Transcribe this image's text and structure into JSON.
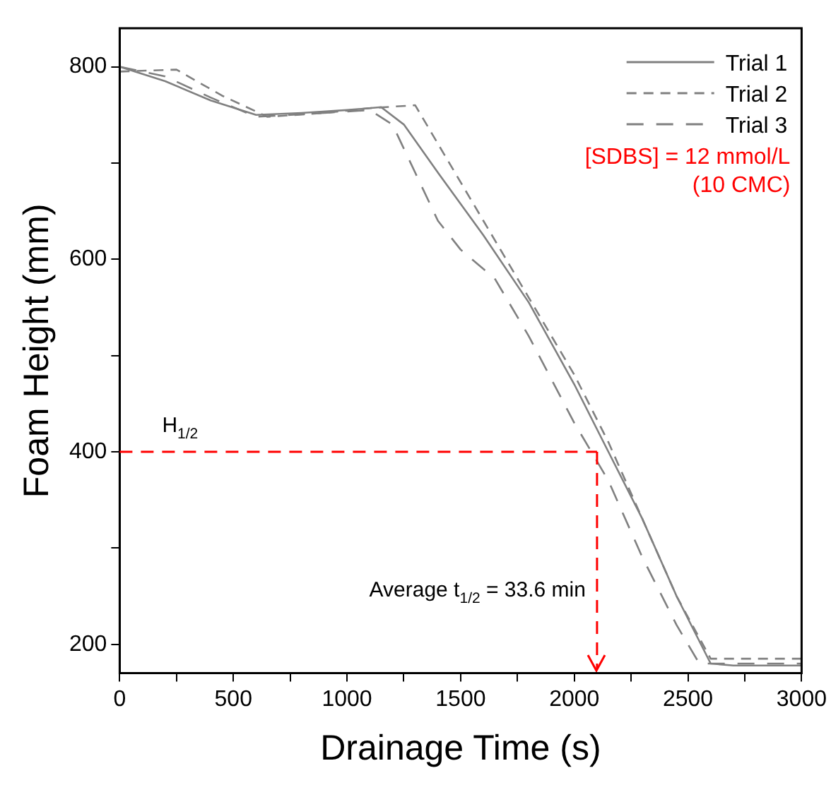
{
  "chart_data": {
    "type": "line",
    "xlabel": "Drainage Time (s)",
    "ylabel": "Foam Height (mm)",
    "xlim": [
      0,
      3000
    ],
    "xticks": [
      0,
      {
        "value": 250,
        "label": null
      },
      500,
      {
        "value": 750,
        "label": null
      },
      1000,
      {
        "value": 1250,
        "label": null
      },
      1500,
      {
        "value": 1750,
        "label": null
      },
      2000,
      {
        "value": 2250,
        "label": null
      },
      2500,
      {
        "value": 2750,
        "label": null
      },
      3000
    ],
    "ylim": [
      170,
      840
    ],
    "yticks": [
      200,
      {
        "value": 300,
        "label": null
      },
      400,
      {
        "value": 500,
        "label": null
      },
      600,
      {
        "value": 700,
        "label": null
      },
      800
    ],
    "grid": false,
    "legend": "top right",
    "marker": "none",
    "series": [
      {
        "name": "Trial 1",
        "color": "#808080",
        "line_style": "solid",
        "x": [
          0,
          200,
          400,
          600,
          800,
          1000,
          1150,
          1250,
          1400,
          1600,
          1800,
          2000,
          2150,
          2300,
          2450,
          2600,
          2700,
          3000
        ],
        "values": [
          800,
          785,
          765,
          750,
          752,
          755,
          758,
          740,
          690,
          625,
          555,
          470,
          400,
          330,
          250,
          180,
          178,
          178
        ]
      },
      {
        "name": "Trial 2",
        "color": "#808080",
        "line_style": "dashed",
        "x": [
          0,
          250,
          450,
          650,
          900,
          1100,
          1300,
          1400,
          1600,
          1800,
          2000,
          2150,
          2300,
          2450,
          2600,
          3000
        ],
        "values": [
          795,
          797,
          770,
          748,
          752,
          757,
          760,
          720,
          640,
          560,
          480,
          410,
          330,
          250,
          185,
          185
        ]
      },
      {
        "name": "Trial 3",
        "color": "#808080",
        "line_style": "dashed",
        "x": [
          0,
          200,
          400,
          600,
          900,
          1100,
          1200,
          1300,
          1400,
          1500,
          1650,
          1800,
          2000,
          2150,
          2300,
          2450,
          2550,
          3000
        ],
        "values": [
          800,
          790,
          768,
          748,
          752,
          755,
          740,
          690,
          640,
          610,
          580,
          520,
          430,
          370,
          290,
          220,
          180,
          180
        ]
      }
    ],
    "ref_lines": [
      {
        "axis": "y",
        "value": 400,
        "label": "H$_{1/2}$",
        "color": "#ff0000",
        "line_style": "dashed"
      },
      {
        "axis": "x",
        "value": 2100,
        "color": "#ff0000",
        "line_style": "dashed"
      }
    ],
    "annotations": [
      "[SDBS] = 12 mmol/L",
      "(10 CMC)",
      {
        "text": "Average t$_{1/2}$ = 33.6 min",
        "x": 2100,
        "y": 250
      }
    ]
  }
}
